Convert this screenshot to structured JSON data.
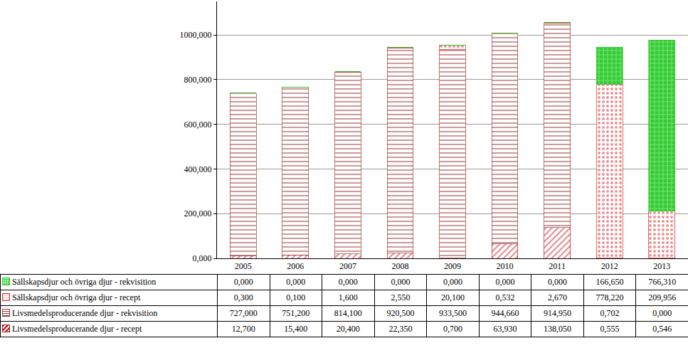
{
  "chart_data": {
    "type": "bar",
    "stacked": true,
    "grid": true,
    "categories": [
      "2005",
      "2006",
      "2007",
      "2008",
      "2009",
      "2010",
      "2011",
      "2012",
      "2013"
    ],
    "ylim": [
      0,
      1150
    ],
    "yticks": [
      {
        "value": 0,
        "label": "0,000"
      },
      {
        "value": 200,
        "label": "200,000"
      },
      {
        "value": 400,
        "label": "400,000"
      },
      {
        "value": 600,
        "label": "600,000"
      },
      {
        "value": 800,
        "label": "800,000"
      },
      {
        "value": 1000,
        "label": "1000,000"
      }
    ],
    "series": [
      {
        "name": "Livsmedelsproducerande djur - recept",
        "color": "#c0141c",
        "values": [
          12.7,
          15.4,
          20.4,
          22.35,
          0.7,
          63.93,
          138.05,
          0.555,
          0.546
        ],
        "value_labels": [
          "12,700",
          "15,400",
          "20,400",
          "22,350",
          "0,700",
          "63,930",
          "138,050",
          "0,555",
          "0,546"
        ]
      },
      {
        "name": "Livsmedelsproducerande djur - rekvisition",
        "color": "#9c3a3a",
        "values": [
          727.0,
          751.2,
          814.1,
          920.5,
          933.5,
          944.66,
          914.95,
          0.702,
          0.0
        ],
        "value_labels": [
          "727,000",
          "751,200",
          "814,100",
          "920,500",
          "933,500",
          "944,660",
          "914,950",
          "0,702",
          "0,000"
        ]
      },
      {
        "name": "Sällskapsdjur och övriga djur - recept",
        "color": "#d42a2a",
        "values": [
          0.3,
          0.1,
          1.6,
          2.55,
          20.1,
          0.532,
          2.67,
          778.22,
          209.956
        ],
        "value_labels": [
          "0,300",
          "0,100",
          "1,600",
          "2,550",
          "20,100",
          "0,532",
          "2,670",
          "778,220",
          "209,956"
        ]
      },
      {
        "name": "Sällskapsdjur och övriga djur - rekvisition",
        "color": "#33cc33",
        "values": [
          0.0,
          0.0,
          0.0,
          0.0,
          0.0,
          0.0,
          0.0,
          166.65,
          766.31
        ],
        "value_labels": [
          "0,000",
          "0,000",
          "0,000",
          "0,000",
          "0,000",
          "0,000",
          "0,000",
          "166,650",
          "766,310"
        ]
      }
    ]
  }
}
